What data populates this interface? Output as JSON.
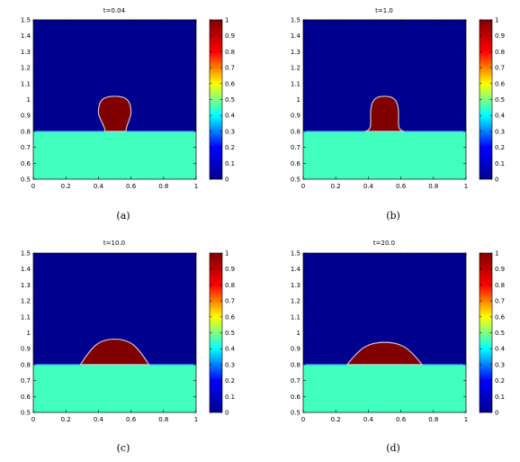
{
  "colors": {
    "background_phase": "#00008f",
    "substrate_phase": "#40ffbf",
    "droplet_phase": "#800000",
    "interface": "#c8c8c8",
    "colorbar_stops": [
      "#00008f",
      "#0000ff",
      "#00ffff",
      "#ffff00",
      "#ff0000",
      "#800000"
    ]
  },
  "chart_data": [
    {
      "type": "heatmap",
      "label": "(a)",
      "title": "t=0.04",
      "xlim": [
        0,
        1
      ],
      "ylim": [
        0.5,
        1.5
      ],
      "xticks": [
        "0",
        "0.2",
        "0.4",
        "0.6",
        "0.8",
        "1"
      ],
      "yticks": [
        "0.5",
        "0.6",
        "0.7",
        "0.8",
        "0.9",
        "1",
        "1.1",
        "1.2",
        "1.3",
        "1.4",
        "1.5"
      ],
      "colorbar_range": [
        0,
        1
      ],
      "colorbar_ticks": [
        "0",
        "0.1",
        "0.2",
        "0.3",
        "0.4",
        "0.5",
        "0.6",
        "0.7",
        "0.8",
        "0.9",
        "1"
      ],
      "substrate_top_y": 0.8,
      "droplet": {
        "shape": "sphere",
        "center_x": 0.5,
        "base_left_x": 0.44,
        "base_right_x": 0.57,
        "max_half_width": 0.1,
        "top_y": 1.02
      }
    },
    {
      "type": "heatmap",
      "label": "(b)",
      "title": "t=1.0",
      "xlim": [
        0,
        1
      ],
      "ylim": [
        0.5,
        1.5
      ],
      "xticks": [
        "0",
        "0.2",
        "0.4",
        "0.6",
        "0.8",
        "1"
      ],
      "yticks": [
        "0.5",
        "0.6",
        "0.7",
        "0.8",
        "0.9",
        "1",
        "1.1",
        "1.2",
        "1.3",
        "1.4",
        "1.5"
      ],
      "colorbar_range": [
        0,
        1
      ],
      "colorbar_ticks": [
        "0",
        "0.1",
        "0.2",
        "0.3",
        "0.4",
        "0.5",
        "0.6",
        "0.7",
        "0.8",
        "0.9",
        "1"
      ],
      "substrate_top_y": 0.8,
      "droplet": {
        "shape": "spreading",
        "center_x": 0.5,
        "base_left_x": 0.38,
        "base_right_x": 0.62,
        "top_y": 1.02
      }
    },
    {
      "type": "heatmap",
      "label": "(c)",
      "title": "t=10.0",
      "xlim": [
        0,
        1
      ],
      "ylim": [
        0.5,
        1.5
      ],
      "xticks": [
        "0",
        "0.2",
        "0.4",
        "0.6",
        "0.8",
        "1"
      ],
      "yticks": [
        "0.5",
        "0.6",
        "0.7",
        "0.8",
        "0.9",
        "1",
        "1.1",
        "1.2",
        "1.3",
        "1.4",
        "1.5"
      ],
      "colorbar_range": [
        0,
        1
      ],
      "colorbar_ticks": [
        "0",
        "0.1",
        "0.2",
        "0.3",
        "0.4",
        "0.5",
        "0.6",
        "0.7",
        "0.8",
        "0.9",
        "1"
      ],
      "substrate_top_y": 0.8,
      "droplet": {
        "shape": "cap",
        "center_x": 0.5,
        "base_left_x": 0.29,
        "base_right_x": 0.71,
        "top_y": 0.96
      }
    },
    {
      "type": "heatmap",
      "label": "(d)",
      "title": "t=20.0",
      "xlim": [
        0,
        1
      ],
      "ylim": [
        0.5,
        1.5
      ],
      "xticks": [
        "0",
        "0.2",
        "0.4",
        "0.6",
        "0.8",
        "1"
      ],
      "yticks": [
        "0.5",
        "0.6",
        "0.7",
        "0.8",
        "0.9",
        "1",
        "1.1",
        "1.2",
        "1.3",
        "1.4",
        "1.5"
      ],
      "colorbar_range": [
        0,
        1
      ],
      "colorbar_ticks": [
        "0",
        "0.1",
        "0.2",
        "0.3",
        "0.4",
        "0.5",
        "0.6",
        "0.7",
        "0.8",
        "0.9",
        "1"
      ],
      "substrate_top_y": 0.8,
      "droplet": {
        "shape": "cap",
        "center_x": 0.5,
        "base_left_x": 0.27,
        "base_right_x": 0.73,
        "top_y": 0.94
      }
    }
  ]
}
